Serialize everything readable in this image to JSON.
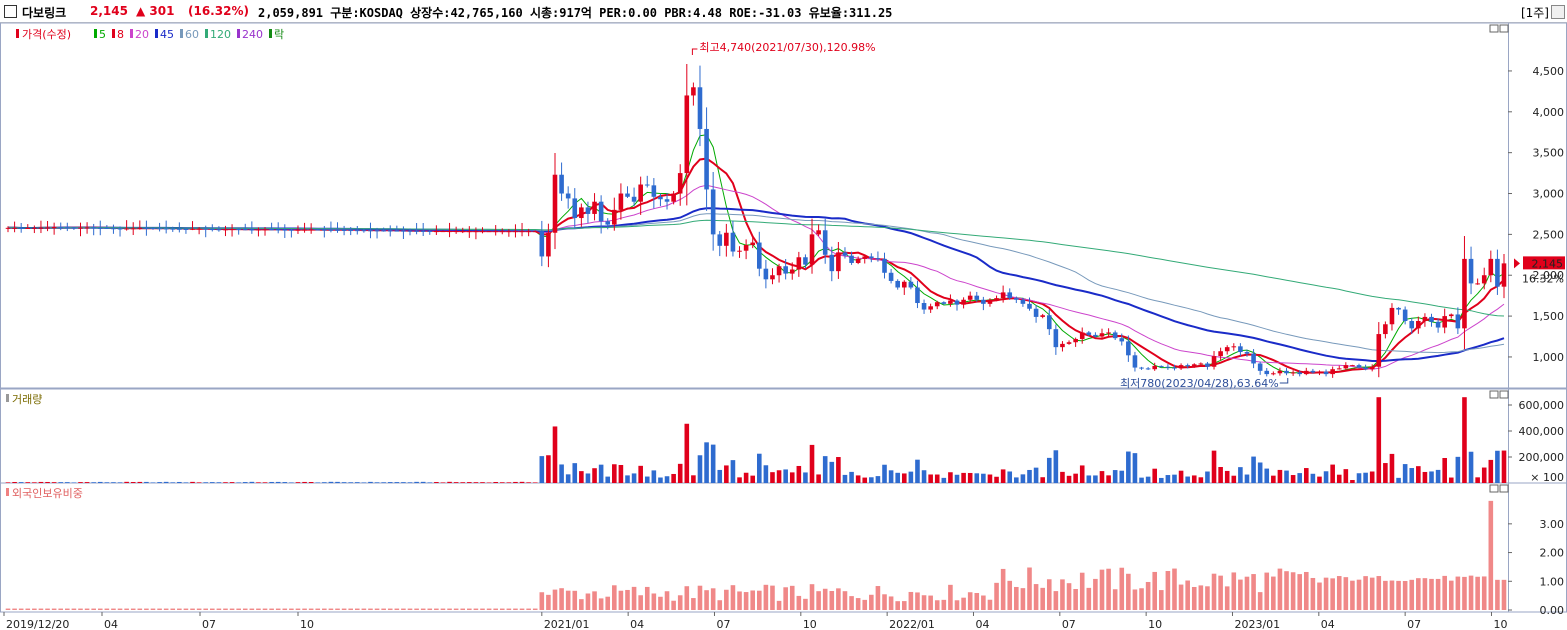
{
  "header": {
    "stock_name": "다보링크",
    "price": "2,145",
    "change": "▲ 301",
    "change_pct": "(16.32%)",
    "info": "2,059,891  구분:KOSDAQ 상장수:42,765,160 시총:917억 PER:0.00 PBR:4.48 ROE:-31.03 유보율:311.25",
    "period": "[1주]"
  },
  "colors": {
    "up": "#e0001b",
    "down": "#2e6bcf",
    "ma5": "#00aa00",
    "ma8": "#e0001b",
    "ma20": "#cc44cc",
    "ma45": "#1a2bc8",
    "ma60": "#7799bb",
    "ma120": "#33aa77",
    "ma240": "#9933cc"
  },
  "chart_data": [
    {
      "type": "candlestick",
      "legend": {
        "price": "가격(수정)",
        "ma": [
          {
            "label": "5",
            "color": "#00aa00"
          },
          {
            "label": "8",
            "color": "#e0001b"
          },
          {
            "label": "20",
            "color": "#cc44cc"
          },
          {
            "label": "45",
            "color": "#1a2bc8"
          },
          {
            "label": "60",
            "color": "#7799bb"
          },
          {
            "label": "120",
            "color": "#33aa77"
          },
          {
            "label": "240",
            "color": "#9933cc"
          }
        ],
        "extra": "락"
      },
      "y_ticks": [
        "4,500",
        "4,000",
        "3,500",
        "3,000",
        "2,500",
        "2,000",
        "1,500",
        "1,000"
      ],
      "y_tick_values": [
        4500,
        4000,
        3500,
        3000,
        2500,
        2000,
        1500,
        1000
      ],
      "ylim": [
        620,
        5050
      ],
      "annotations": {
        "high": "최고4,740(2021/07/30),120.98%",
        "low": "최저780(2023/04/28),63.64%",
        "last_price": "2,145",
        "last_pct": "16.32%"
      },
      "close": [
        2580,
        2580,
        2575,
        2578,
        2580,
        2582,
        2585,
        2590,
        2588,
        2585,
        2580,
        2582,
        2585,
        2580,
        2578,
        2575,
        2572,
        2570,
        2572,
        2575,
        2580,
        2578,
        2575,
        2572,
        2570,
        2568,
        2566,
        2565,
        2568,
        2570,
        2565,
        2562,
        2560,
        2562,
        2565,
        2563,
        2560,
        2558,
        2560,
        2562,
        2560,
        2558,
        2557,
        2555,
        2557,
        2558,
        2560,
        2558,
        2556,
        2555,
        2554,
        2553,
        2552,
        2551,
        2550,
        2549,
        2548,
        2547,
        2546,
        2545,
        2544,
        2543,
        2542,
        2541,
        2540,
        2540,
        2540,
        2540,
        2540,
        2540,
        2540,
        2540,
        2540,
        2540,
        2540,
        2540,
        2540,
        2540,
        2540,
        2540,
        2540,
        2230,
        2520,
        3230,
        3000,
        2940,
        2700,
        2830,
        2750,
        2900,
        2660,
        2620,
        2800,
        3000,
        2960,
        2900,
        3110,
        3100,
        2960,
        2930,
        2900,
        3000,
        3250,
        4200,
        4300,
        3790,
        3050,
        2500,
        2360,
        2520,
        2290,
        2300,
        2370,
        2400,
        2080,
        1950,
        2000,
        2110,
        2020,
        2070,
        2220,
        2130,
        2500,
        2550,
        2250,
        2050,
        2280,
        2240,
        2150,
        2200,
        2230,
        2210,
        2200,
        2030,
        1930,
        1850,
        1920,
        1850,
        1660,
        1580,
        1620,
        1670,
        1650,
        1690,
        1640,
        1700,
        1750,
        1700,
        1650,
        1700,
        1720,
        1790,
        1720,
        1700,
        1650,
        1590,
        1490,
        1510,
        1340,
        1120,
        1160,
        1180,
        1220,
        1300,
        1270,
        1250,
        1290,
        1300,
        1230,
        1190,
        1020,
        870,
        860,
        850,
        890,
        880,
        870,
        860,
        900,
        890,
        910,
        920,
        880,
        1010,
        1070,
        1120,
        1130,
        1060,
        1040,
        920,
        830,
        790,
        800,
        830,
        800,
        810,
        790,
        830,
        810,
        820,
        790,
        850,
        860,
        900,
        900,
        870,
        850,
        880,
        1280,
        1400,
        1600,
        1580,
        1440,
        1350,
        1440,
        1490,
        1430,
        1360,
        1500,
        1520,
        1350,
        2200,
        1900,
        1900,
        2000,
        2200,
        1860,
        2145
      ],
      "volume": {
        "title": "거래량",
        "y_ticks": [
          "600,000",
          "400,000",
          "200,000"
        ],
        "y_tick_values": [
          600000,
          400000,
          200000
        ],
        "unit": "× 100"
      },
      "foreign": {
        "title": "외국인보유비중",
        "y_ticks": [
          "3.00",
          "2.00",
          "1.00",
          "0.00"
        ],
        "y_tick_values": [
          3,
          2,
          1,
          0
        ]
      },
      "x_labels": [
        "2019/12/20",
        "04",
        "07",
        "10",
        "2021/01",
        "04",
        "07",
        "10",
        "2022/01",
        "04",
        "07",
        "10",
        "2023/01",
        "04",
        "07",
        "10"
      ]
    }
  ]
}
